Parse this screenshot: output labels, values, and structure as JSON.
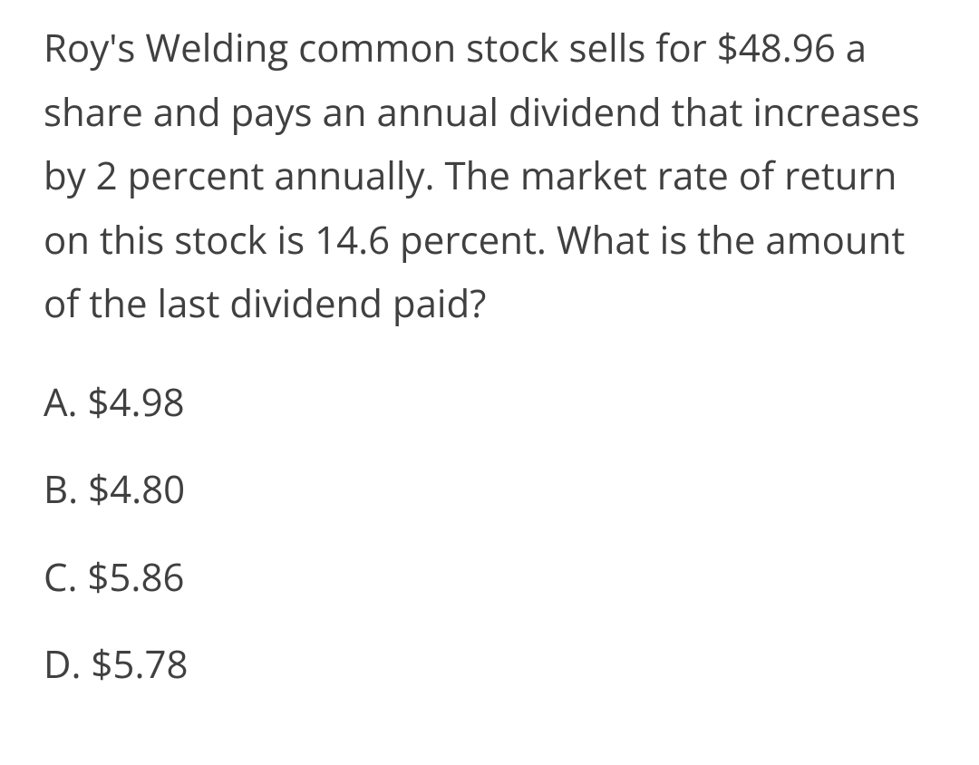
{
  "question": {
    "text": "Roy's Welding common stock sells for $48.96 a share and pays an annual dividend that increases by 2 percent annually. The market rate of return on this stock is 14.6 percent. What is the amount of the last dividend paid?",
    "text_color": "#404040",
    "font_size": 42,
    "background_color": "#ffffff"
  },
  "options": [
    {
      "label": "A. $4.98"
    },
    {
      "label": "B. $4.80"
    },
    {
      "label": "C. $5.86"
    },
    {
      "label": "D. $5.78"
    }
  ]
}
